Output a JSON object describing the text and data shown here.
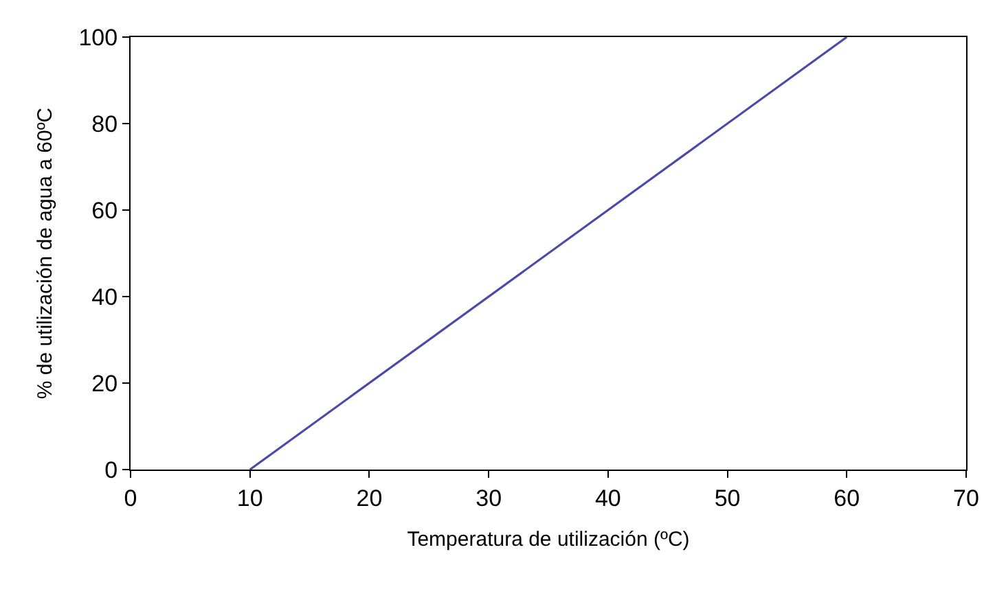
{
  "chart_data": {
    "type": "line",
    "xlabel": "Temperatura de utilización (ºC)",
    "ylabel": "% de utilización de agua a 60ºC",
    "series": [
      {
        "color": "#4a4aa8",
        "x": [
          10,
          60
        ],
        "values": [
          0,
          100
        ]
      }
    ],
    "xlim": [
      0,
      70
    ],
    "xticks": [
      0,
      10,
      20,
      30,
      40,
      50,
      60,
      70
    ],
    "ylim": [
      0,
      100
    ],
    "yticks": [
      0,
      20,
      40,
      60,
      80,
      100
    ],
    "marker": "none",
    "line_style": "solid"
  }
}
